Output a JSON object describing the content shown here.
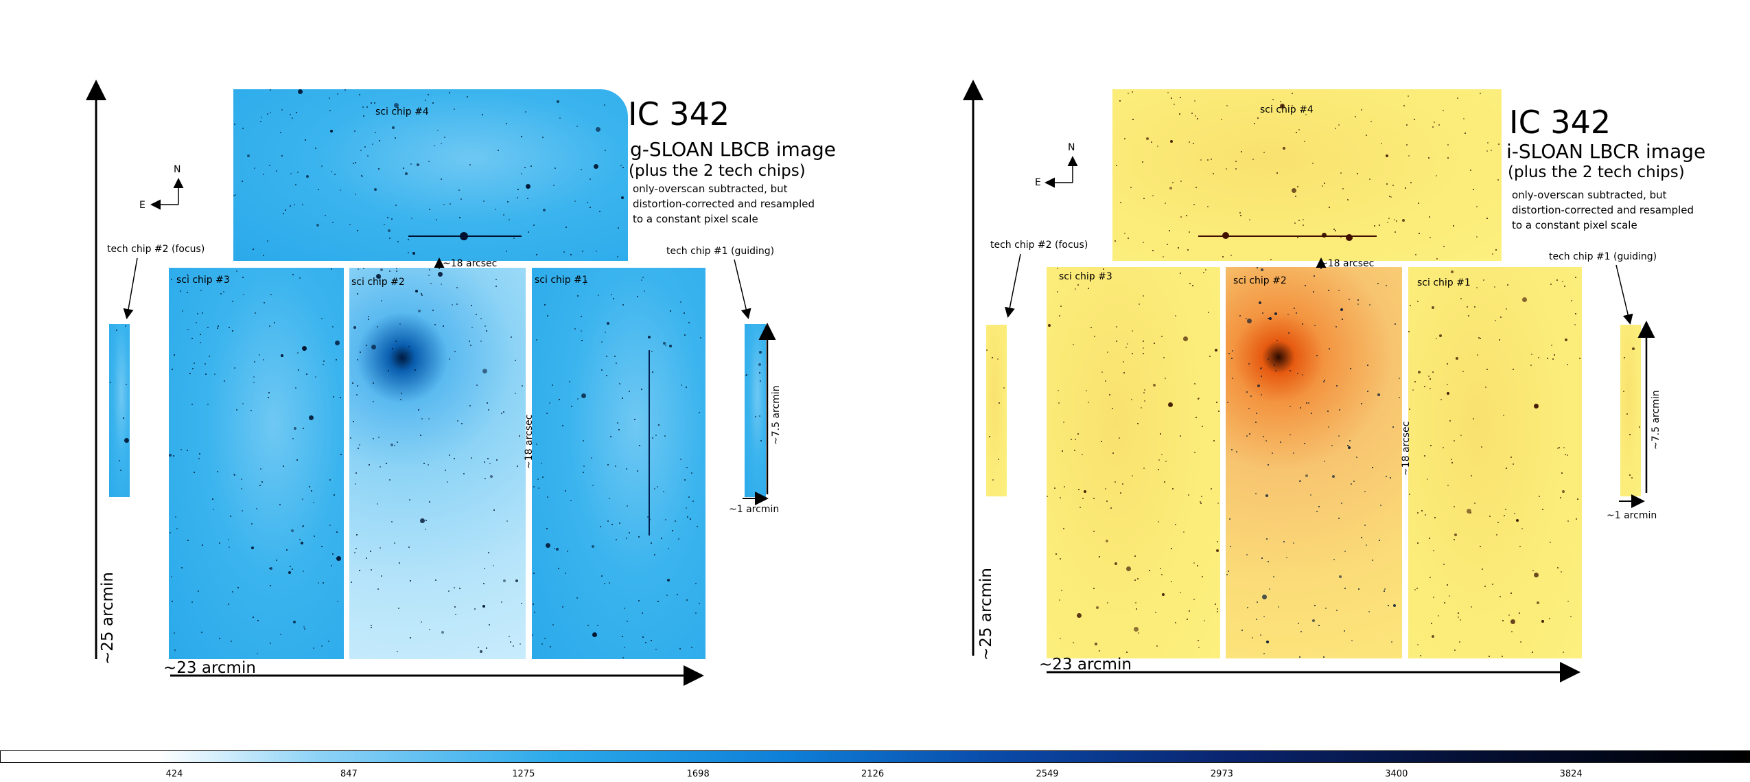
{
  "panels": [
    {
      "title": "IC 342",
      "subtitle": "g-SLOAN LBCB image",
      "subnote": "(plus the 2 tech chips)",
      "note": "only-overscan subtracted, but\ndistortion-corrected and resampled\nto a constant pixel scale",
      "chip4": "sci chip #4",
      "chip3": "sci chip #3",
      "chip2": "sci chip #2",
      "chip1": "sci chip #1",
      "tech2": "tech chip #2 (focus)",
      "tech1": "tech chip #1 (guiding)",
      "gap_h": "~18 arcsec",
      "gap_v": "~18 arcsec",
      "tech_height": "~7.5 arcmin",
      "tech_width": "~1 arcmin",
      "height": "~25 arcmin",
      "width": "~23 arcmin",
      "north": "N",
      "east": "E",
      "color_scheme": "blue"
    },
    {
      "title": "IC 342",
      "subtitle": "i-SLOAN LBCR image",
      "subnote": "(plus the 2 tech chips)",
      "note": "only-overscan subtracted, but\ndistortion-corrected and resampled\nto a constant pixel scale",
      "chip4": "sci chip #4",
      "chip3": "sci chip #3",
      "chip2": "sci chip #2",
      "chip1": "sci chip #1",
      "tech2": "tech chip #2 (focus)",
      "tech1": "tech chip #1 (guiding)",
      "gap_h": "~18 arcsec",
      "gap_v": "~18 arcsec",
      "tech_height": "~7.5 arcmin",
      "tech_width": "~1 arcmin",
      "height": "~25 arcmin",
      "width": "~23 arcmin",
      "north": "N",
      "east": "E",
      "color_scheme": "yellow"
    }
  ],
  "colorbar": {
    "ticks": [
      "424",
      "847",
      "1275",
      "1698",
      "2126",
      "2549",
      "2973",
      "3400",
      "3824"
    ],
    "colors": [
      "#ffffff",
      "#1e90ff",
      "#0a2a7a",
      "#000000"
    ]
  }
}
